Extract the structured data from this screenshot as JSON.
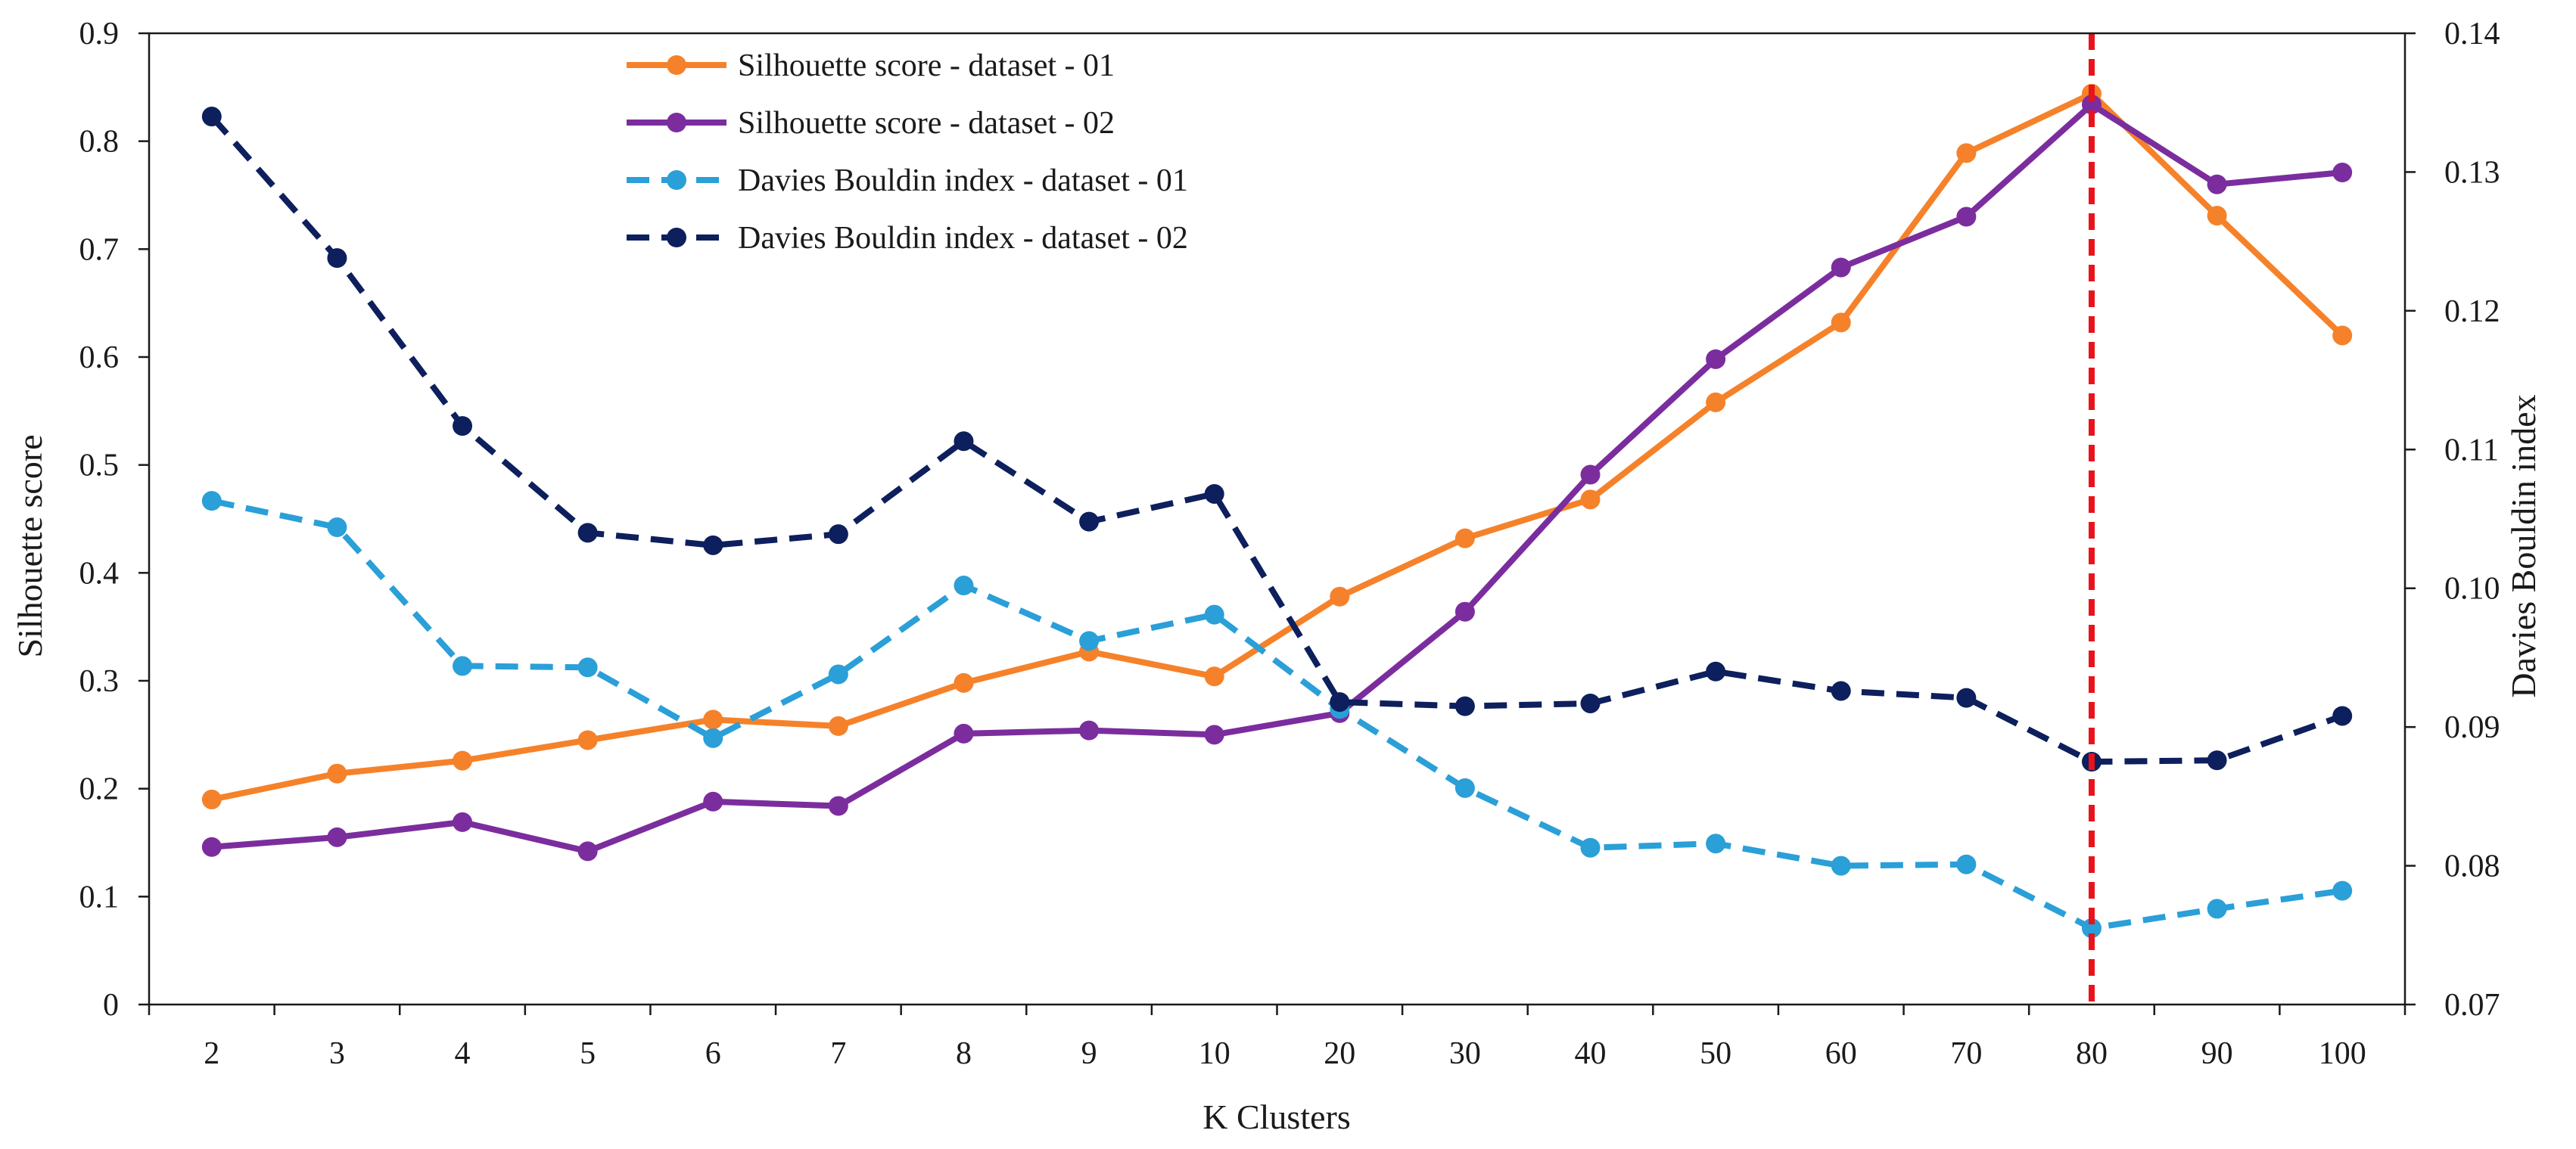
{
  "chart_data": {
    "type": "line",
    "categories": [
      "2",
      "3",
      "4",
      "5",
      "6",
      "7",
      "8",
      "9",
      "10",
      "20",
      "30",
      "40",
      "50",
      "60",
      "70",
      "80",
      "90",
      "100"
    ],
    "xlabel": "K Clusters",
    "ylabel": "Silhouette score",
    "y2label": "Davies Bouldin index",
    "ylim": [
      0,
      0.9
    ],
    "y2lim": [
      0.07,
      0.14
    ],
    "yticks": [
      "0",
      "0.1",
      "0.2",
      "0.3",
      "0.4",
      "0.5",
      "0.6",
      "0.7",
      "0.8",
      "0.9"
    ],
    "y2ticks": [
      "0.07",
      "0.08",
      "0.09",
      "0.10",
      "0.11",
      "0.12",
      "0.13",
      "0.14"
    ],
    "legend_position": "top-center",
    "series": [
      {
        "name": "Silhouette score - dataset - 01",
        "axis": "left",
        "style": "solid",
        "color": "#F5822A",
        "values": [
          0.19,
          0.214,
          0.226,
          0.245,
          0.264,
          0.258,
          0.298,
          0.327,
          0.304,
          0.378,
          0.432,
          0.468,
          0.558,
          0.632,
          0.789,
          0.844,
          0.731,
          0.62
        ]
      },
      {
        "name": "Silhouette score - dataset - 02",
        "axis": "left",
        "style": "solid",
        "color": "#7B2D9E",
        "values": [
          0.146,
          0.155,
          0.169,
          0.142,
          0.188,
          0.184,
          0.251,
          0.254,
          0.25,
          0.27,
          0.364,
          0.491,
          0.598,
          0.683,
          0.73,
          0.834,
          0.76,
          0.771
        ]
      },
      {
        "name": "Davies Bouldin index - dataset - 01",
        "axis": "right",
        "style": "dashed",
        "color": "#2A9FD8",
        "values": [
          0.1063,
          0.1044,
          0.0944,
          0.0943,
          0.0892,
          0.0938,
          0.1002,
          0.0962,
          0.0981,
          0.0913,
          0.0856,
          0.0813,
          0.0816,
          0.08,
          0.0801,
          0.0755,
          0.0769,
          0.0782
        ]
      },
      {
        "name": "Davies Bouldin index - dataset - 02",
        "axis": "right",
        "style": "dashed",
        "color": "#0D1F5C",
        "values": [
          0.134,
          0.1238,
          0.1117,
          0.104,
          0.1031,
          0.1039,
          0.1106,
          0.1048,
          0.1068,
          0.0918,
          0.0915,
          0.0917,
          0.094,
          0.0926,
          0.0921,
          0.0875,
          0.0876,
          0.0908
        ]
      }
    ],
    "annotations": [
      {
        "type": "vertical-line",
        "at_category": "80",
        "style": "dashed",
        "color": "#E8131B"
      }
    ]
  }
}
